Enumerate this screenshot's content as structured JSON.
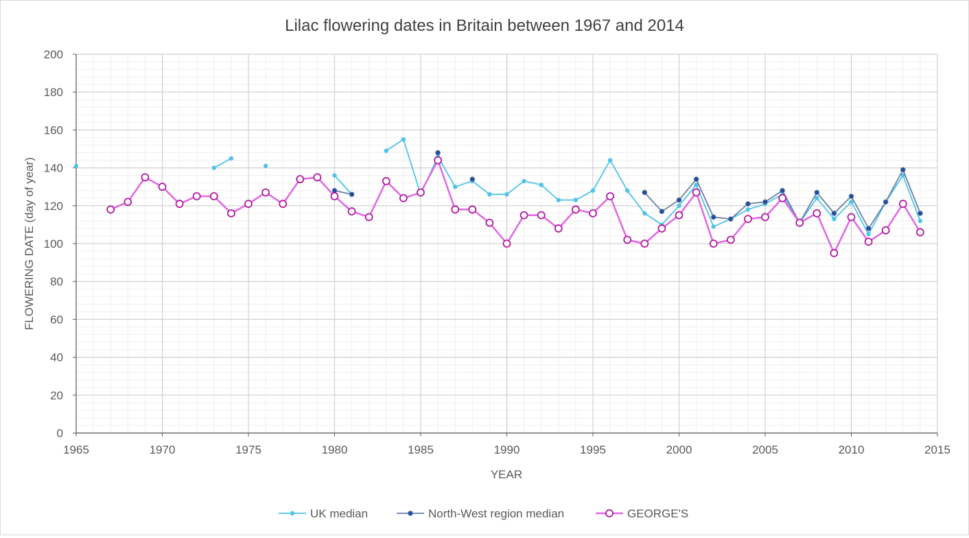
{
  "chart_data": {
    "type": "line",
    "title": "Lilac flowering dates in Britain between 1967 and 2014",
    "xlabel": "YEAR",
    "ylabel": "FLOWERING DATE (day of year)",
    "xlim": [
      1965,
      2015
    ],
    "ylim": [
      0,
      200
    ],
    "x_ticks": [
      1965,
      1970,
      1975,
      1980,
      1985,
      1990,
      1995,
      2000,
      2005,
      2010,
      2015
    ],
    "y_ticks": [
      0,
      20,
      40,
      60,
      80,
      100,
      120,
      140,
      160,
      180,
      200
    ],
    "grid": true,
    "legend_position": "bottom",
    "series": [
      {
        "name": "UK median",
        "color": "#4fc3e8",
        "marker": "small-dot",
        "points": [
          [
            1965,
            141
          ],
          [
            1973,
            140
          ],
          [
            1974,
            145
          ],
          [
            1976,
            141
          ],
          [
            1980,
            136
          ],
          [
            1981,
            126
          ],
          [
            1983,
            149
          ],
          [
            1984,
            155
          ],
          [
            1985,
            126
          ],
          [
            1986,
            146
          ],
          [
            1987,
            130
          ],
          [
            1988,
            133
          ],
          [
            1989,
            126
          ],
          [
            1990,
            126
          ],
          [
            1991,
            133
          ],
          [
            1992,
            131
          ],
          [
            1993,
            123
          ],
          [
            1994,
            123
          ],
          [
            1995,
            128
          ],
          [
            1996,
            144
          ],
          [
            1997,
            128
          ],
          [
            1998,
            116
          ],
          [
            1999,
            110
          ],
          [
            2000,
            120
          ],
          [
            2001,
            131
          ],
          [
            2002,
            109
          ],
          [
            2003,
            113
          ],
          [
            2004,
            118
          ],
          [
            2005,
            121
          ],
          [
            2006,
            126
          ],
          [
            2007,
            111
          ],
          [
            2008,
            124
          ],
          [
            2009,
            113
          ],
          [
            2010,
            122
          ],
          [
            2011,
            105
          ],
          [
            2012,
            122
          ],
          [
            2013,
            136
          ],
          [
            2014,
            112
          ]
        ]
      },
      {
        "name": "North-West region median",
        "color": "#6a7fa6",
        "marker_color": "#1f4e9c",
        "marker": "dot",
        "points": [
          [
            1980,
            128
          ],
          [
            1981,
            126
          ],
          [
            1986,
            148
          ],
          [
            1988,
            134
          ],
          [
            1998,
            127
          ],
          [
            1999,
            117
          ],
          [
            2000,
            123
          ],
          [
            2001,
            134
          ],
          [
            2002,
            114
          ],
          [
            2003,
            113
          ],
          [
            2004,
            121
          ],
          [
            2005,
            122
          ],
          [
            2006,
            128
          ],
          [
            2007,
            111
          ],
          [
            2008,
            127
          ],
          [
            2009,
            116
          ],
          [
            2010,
            125
          ],
          [
            2011,
            108
          ],
          [
            2012,
            122
          ],
          [
            2013,
            139
          ],
          [
            2014,
            116
          ]
        ]
      },
      {
        "name": "GEORGE'S",
        "color": "#e066e6",
        "marker_color": "#b0199e",
        "marker": "hollow-circle",
        "points": [
          [
            1967,
            118
          ],
          [
            1968,
            122
          ],
          [
            1969,
            135
          ],
          [
            1970,
            130
          ],
          [
            1971,
            121
          ],
          [
            1972,
            125
          ],
          [
            1973,
            125
          ],
          [
            1974,
            116
          ],
          [
            1975,
            121
          ],
          [
            1976,
            127
          ],
          [
            1977,
            121
          ],
          [
            1978,
            134
          ],
          [
            1979,
            135
          ],
          [
            1980,
            125
          ],
          [
            1981,
            117
          ],
          [
            1982,
            114
          ],
          [
            1983,
            133
          ],
          [
            1984,
            124
          ],
          [
            1985,
            127
          ],
          [
            1986,
            144
          ],
          [
            1987,
            118
          ],
          [
            1988,
            118
          ],
          [
            1989,
            111
          ],
          [
            1990,
            100
          ],
          [
            1991,
            115
          ],
          [
            1992,
            115
          ],
          [
            1993,
            108
          ],
          [
            1994,
            118
          ],
          [
            1995,
            116
          ],
          [
            1996,
            125
          ],
          [
            1997,
            102
          ],
          [
            1998,
            100
          ],
          [
            1999,
            108
          ],
          [
            2000,
            115
          ],
          [
            2001,
            127
          ],
          [
            2002,
            100
          ],
          [
            2003,
            102
          ],
          [
            2004,
            113
          ],
          [
            2005,
            114
          ],
          [
            2006,
            124
          ],
          [
            2007,
            111
          ],
          [
            2008,
            116
          ],
          [
            2009,
            95
          ],
          [
            2010,
            114
          ],
          [
            2011,
            101
          ],
          [
            2012,
            107
          ],
          [
            2013,
            121
          ],
          [
            2014,
            106
          ]
        ]
      }
    ]
  }
}
